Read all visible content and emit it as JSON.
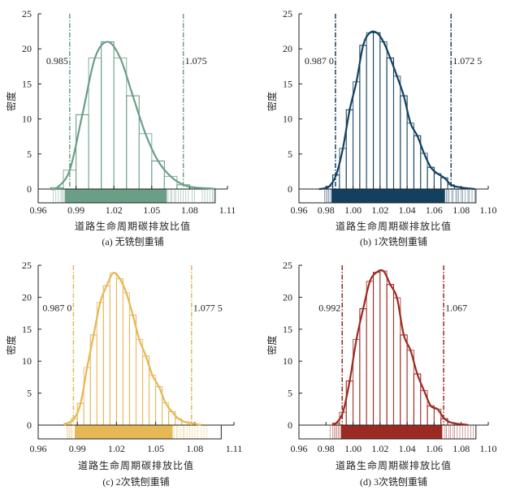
{
  "chart_data": [
    {
      "type": "bar",
      "panel": "a",
      "caption": "(a)  无铣刨重铺",
      "xlabel": "道路生命周期碳排放比值",
      "ylabel": "密度",
      "color": "#6a9e87",
      "xlim": [
        0.96,
        1.11
      ],
      "ylim": [
        0,
        25
      ],
      "xticks": [
        "0.96",
        "0.99",
        "1.02",
        "1.05",
        "1.08",
        "1.11"
      ],
      "yticks": [
        "0",
        "5",
        "10",
        "15",
        "20",
        "25"
      ],
      "bin_start": 0.97,
      "bin_width": 0.01,
      "values": [
        0.2,
        2.7,
        10.6,
        18.7,
        21.0,
        18.7,
        13.3,
        7.9,
        4.0,
        1.8,
        0.6,
        0.2,
        0.1
      ],
      "thresholds": [
        {
          "value": 0.985,
          "label": "0.985"
        },
        {
          "value": 1.075,
          "label": "1.075"
        }
      ],
      "rug": {
        "dense": [
          0.981,
          1.062
        ],
        "sparse": [
          0.972,
          0.974,
          0.976,
          0.978,
          0.979,
          0.98,
          1.063,
          1.065,
          1.066,
          1.068,
          1.069,
          1.071,
          1.073,
          1.075,
          1.077,
          1.079,
          1.082,
          1.084,
          1.09,
          1.092,
          1.094,
          1.096,
          1.098,
          1.099
        ]
      }
    },
    {
      "type": "bar",
      "panel": "b",
      "caption": "(b)  1次铣刨重铺",
      "xlabel": "道路生命周期碳排放比值",
      "ylabel": "密度",
      "color": "#13405f",
      "xlim": [
        0.96,
        1.1
      ],
      "ylim": [
        0,
        25
      ],
      "xticks": [
        "0.96",
        "0.98",
        "1.00",
        "1.02",
        "1.04",
        "1.06",
        "1.08",
        "1.10"
      ],
      "yticks": [
        "0",
        "5",
        "10",
        "15",
        "20",
        "25"
      ],
      "bin_start": 0.975,
      "bin_width": 0.005,
      "values": [
        0.05,
        0.4,
        2.0,
        5.8,
        11.3,
        15.3,
        20.5,
        22.3,
        22.3,
        21.0,
        18.7,
        16.1,
        13.3,
        9.4,
        7.6,
        5.1,
        3.1,
        2.2,
        1.6,
        0.6,
        0.3,
        0.15,
        0.05
      ],
      "thresholds": [
        {
          "value": 0.987,
          "label": "0.987 0"
        },
        {
          "value": 1.0725,
          "label": "1.072 5"
        }
      ],
      "rug": {
        "dense": [
          0.984,
          1.068
        ],
        "sparse": [
          0.979,
          0.98,
          0.981,
          0.982,
          0.983,
          1.069,
          1.07,
          1.071,
          1.073,
          1.074,
          1.076,
          1.077,
          1.078,
          1.08,
          1.081,
          1.083,
          1.085,
          1.086,
          1.088,
          1.09
        ]
      }
    },
    {
      "type": "bar",
      "panel": "c",
      "caption": "(c)  2次铣刨重铺",
      "xlabel": "道路生命周期碳排放比值",
      "ylabel": "密度",
      "color": "#e6b755",
      "xlim": [
        0.96,
        1.11
      ],
      "ylim": [
        0,
        25
      ],
      "xticks": [
        "0.96",
        "0.99",
        "1.02",
        "1.05",
        "1.08",
        "1.11"
      ],
      "yticks": [
        "0",
        "5",
        "10",
        "15",
        "20",
        "25"
      ],
      "bin_start": 0.98,
      "bin_width": 0.005,
      "values": [
        0.3,
        1.0,
        3.4,
        9.0,
        14.1,
        19.2,
        21.8,
        23.8,
        22.9,
        20.7,
        17.2,
        13.4,
        10.8,
        7.8,
        6.0,
        3.5,
        2.1,
        1.0,
        0.5,
        0.3,
        0.1
      ],
      "thresholds": [
        {
          "value": 0.987,
          "label": "0.987 0"
        },
        {
          "value": 1.0775,
          "label": "1.077 5"
        }
      ],
      "rug": {
        "dense": [
          0.988,
          1.063
        ],
        "sparse": [
          0.982,
          0.983,
          0.984,
          0.985,
          0.986,
          1.064,
          1.066,
          1.067,
          1.069,
          1.071,
          1.072,
          1.074,
          1.076,
          1.078,
          1.08,
          1.082,
          1.085,
          1.087,
          1.089
        ]
      }
    },
    {
      "type": "bar",
      "panel": "d",
      "caption": "(d)  3次铣刨重铺",
      "xlabel": "道路生命周期碳排放比值",
      "ylabel": "密度",
      "color": "#9b2a22",
      "xlim": [
        0.96,
        1.1
      ],
      "ylim": [
        0,
        25
      ],
      "xticks": [
        "0.96",
        "0.98",
        "1.00",
        "1.02",
        "1.04",
        "1.06",
        "1.08",
        "1.10"
      ],
      "yticks": [
        "0",
        "5",
        "10",
        "15",
        "20",
        "25"
      ],
      "bin_start": 0.985,
      "bin_width": 0.005,
      "values": [
        0.3,
        2.0,
        6.9,
        13.4,
        18.2,
        22.5,
        23.9,
        24.1,
        22.0,
        19.9,
        14.1,
        11.7,
        8.0,
        5.4,
        3.0,
        2.5,
        1.0,
        0.4,
        0.2,
        0.1
      ],
      "thresholds": [
        {
          "value": 0.992,
          "label": "0.992"
        },
        {
          "value": 1.067,
          "label": "1.067"
        }
      ],
      "rug": {
        "dense": [
          0.991,
          1.066
        ],
        "sparse": [
          0.983,
          0.985,
          0.986,
          0.987,
          0.988,
          0.989,
          0.99,
          1.068,
          1.069,
          1.071,
          1.072,
          1.074,
          1.075,
          1.077,
          1.079,
          1.081,
          1.083,
          1.085,
          1.087,
          1.089
        ]
      }
    }
  ]
}
